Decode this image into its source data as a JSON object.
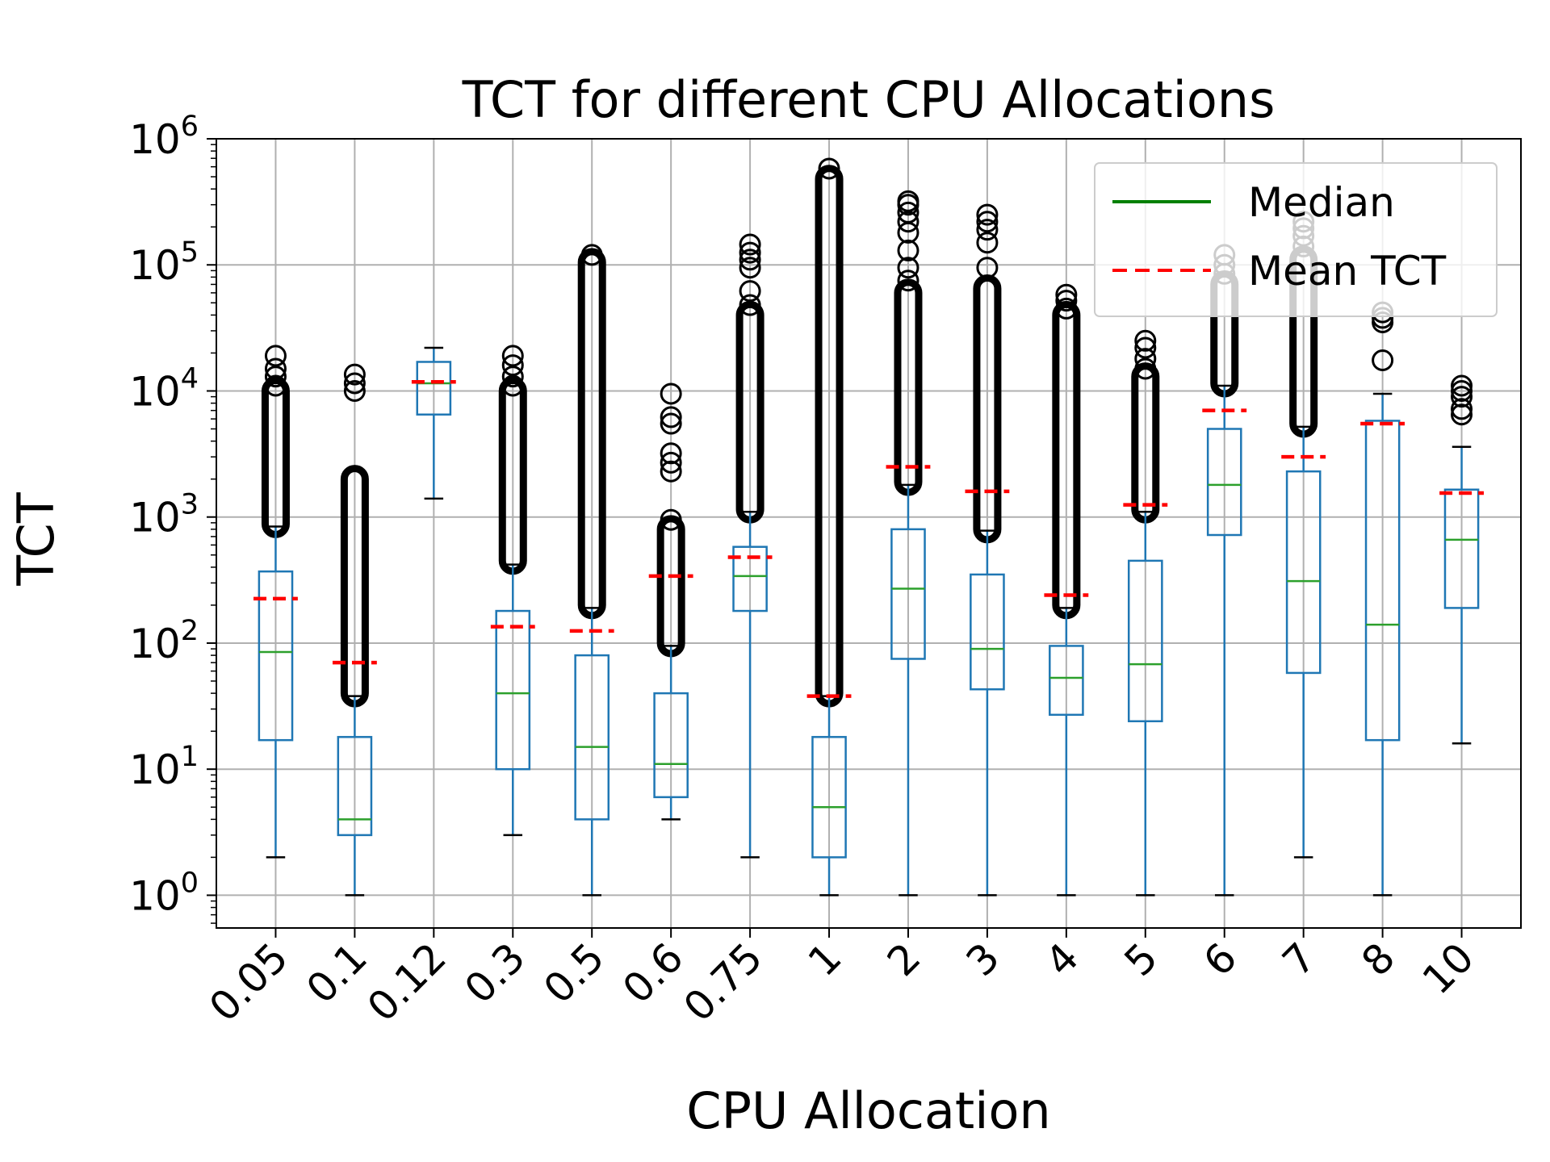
{
  "chart_data": {
    "type": "boxplot",
    "title": "TCT for different CPU Allocations",
    "xlabel": "CPU Allocation",
    "ylabel": "TCT",
    "yscale": "log",
    "ylim": [
      0.55,
      1000000
    ],
    "y_tick_values": [
      1,
      10,
      100,
      1000,
      10000,
      100000,
      1000000
    ],
    "y_tick_labels": [
      {
        "base": "10",
        "exp": "0"
      },
      {
        "base": "10",
        "exp": "1"
      },
      {
        "base": "10",
        "exp": "2"
      },
      {
        "base": "10",
        "exp": "3"
      },
      {
        "base": "10",
        "exp": "4"
      },
      {
        "base": "10",
        "exp": "5"
      },
      {
        "base": "10",
        "exp": "6"
      }
    ],
    "grid": true,
    "categories": [
      "0.05",
      "0.1",
      "0.12",
      "0.3",
      "0.5",
      "0.6",
      "0.75",
      "1",
      "2",
      "3",
      "4",
      "5",
      "6",
      "7",
      "8",
      "10"
    ],
    "boxes": [
      {
        "whisker_low": 2,
        "q1": 17,
        "median": 85,
        "q3": 370,
        "whisker_high": 840,
        "mean": 225,
        "flier_range": [
          880,
          10000
        ],
        "fliers_extra": [
          11000,
          13000,
          15000,
          19000
        ]
      },
      {
        "whisker_low": 1,
        "q1": 3,
        "median": 4,
        "q3": 18,
        "whisker_high": 38,
        "mean": 70,
        "flier_range": [
          40,
          2000
        ],
        "fliers_extra": [
          10000,
          11500,
          13500
        ]
      },
      {
        "whisker_low": 1400,
        "q1": 6500,
        "median": 11500,
        "q3": 17000,
        "whisker_high": 22000,
        "mean": 11800,
        "flier_range": null,
        "fliers_extra": []
      },
      {
        "whisker_low": 3,
        "q1": 10,
        "median": 40,
        "q3": 180,
        "whisker_high": 420,
        "mean": 135,
        "flier_range": [
          450,
          10000
        ],
        "fliers_extra": [
          11000,
          13000,
          16000,
          19000
        ]
      },
      {
        "whisker_low": 1,
        "q1": 4,
        "median": 15,
        "q3": 80,
        "whisker_high": 190,
        "mean": 125,
        "flier_range": [
          200,
          105000
        ],
        "fliers_extra": [
          120000
        ]
      },
      {
        "whisker_low": 4,
        "q1": 6,
        "median": 11,
        "q3": 40,
        "whisker_high": 95,
        "mean": 340,
        "flier_range": [
          100,
          800
        ],
        "fliers_extra": [
          950,
          2300,
          2700,
          3200,
          5500,
          6200,
          9500
        ]
      },
      {
        "whisker_low": 2,
        "q1": 180,
        "median": 340,
        "q3": 580,
        "whisker_high": 1100,
        "mean": 480,
        "flier_range": [
          1150,
          40000
        ],
        "fliers_extra": [
          48000,
          62000,
          95000,
          110000,
          125000,
          145000
        ]
      },
      {
        "whisker_low": 1,
        "q1": 2,
        "median": 5,
        "q3": 18,
        "whisker_high": 38,
        "mean": 38,
        "flier_range": [
          40,
          480000
        ],
        "fliers_extra": [
          580000
        ]
      },
      {
        "whisker_low": 1,
        "q1": 75,
        "median": 270,
        "q3": 800,
        "whisker_high": 1800,
        "mean": 2500,
        "flier_range": [
          1900,
          60000
        ],
        "fliers_extra": [
          75000,
          95000,
          130000,
          180000,
          220000,
          260000,
          300000,
          320000
        ]
      },
      {
        "whisker_low": 1,
        "q1": 43,
        "median": 90,
        "q3": 350,
        "whisker_high": 780,
        "mean": 1600,
        "flier_range": [
          800,
          65000
        ],
        "fliers_extra": [
          95000,
          150000,
          190000,
          220000,
          250000
        ]
      },
      {
        "whisker_low": 1,
        "q1": 27,
        "median": 53,
        "q3": 95,
        "whisker_high": 190,
        "mean": 240,
        "flier_range": [
          200,
          40000
        ],
        "fliers_extra": [
          45000,
          52000,
          58000
        ]
      },
      {
        "whisker_low": 1,
        "q1": 24,
        "median": 68,
        "q3": 450,
        "whisker_high": 1100,
        "mean": 1250,
        "flier_range": [
          1150,
          13000
        ],
        "fliers_extra": [
          15000,
          18000,
          22000,
          25000
        ]
      },
      {
        "whisker_low": 1,
        "q1": 720,
        "median": 1800,
        "q3": 5000,
        "whisker_high": 11000,
        "mean": 7000,
        "flier_range": [
          11500,
          70000
        ],
        "fliers_extra": [
          85000,
          100000,
          120000
        ]
      },
      {
        "whisker_low": 2,
        "q1": 58,
        "median": 310,
        "q3": 2300,
        "whisker_high": 5200,
        "mean": 3000,
        "flier_range": [
          5500,
          110000
        ],
        "fliers_extra": [
          140000,
          170000,
          195000,
          220000
        ]
      },
      {
        "whisker_low": 1,
        "q1": 17,
        "median": 140,
        "q3": 5800,
        "whisker_high": 9500,
        "mean": 5500,
        "flier_range": null,
        "fliers_extra": [
          17500,
          35000,
          38000,
          42000
        ]
      },
      {
        "whisker_low": 16,
        "q1": 190,
        "median": 660,
        "q3": 1650,
        "whisker_high": 3600,
        "mean": 1550,
        "flier_range": null,
        "fliers_extra": [
          6500,
          7200,
          9000,
          10000,
          11000
        ]
      }
    ],
    "legend": {
      "position": "top-right",
      "entries": [
        {
          "label": "Median",
          "color": "#008000",
          "style": "solid"
        },
        {
          "label": "Mean TCT",
          "color": "#ff0000",
          "style": "dashed"
        }
      ]
    },
    "colors": {
      "box": "#1f77b4",
      "median": "#2ca02c",
      "mean": "#ff0000",
      "flier": "#000000",
      "grid": "#b0b0b0",
      "whisker_cap": "#000000"
    }
  }
}
